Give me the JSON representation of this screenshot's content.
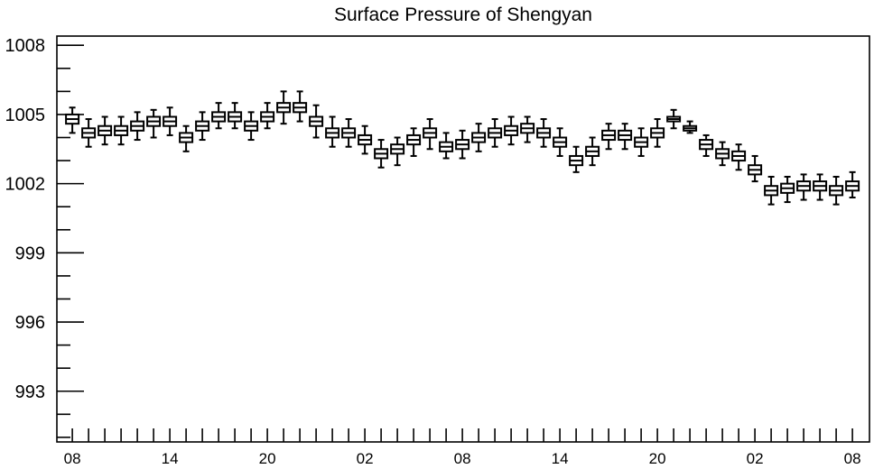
{
  "colors": {
    "foreground": "#000000",
    "background": "#ffffff"
  },
  "chart_data": {
    "type": "box",
    "title": "Surface Pressure of Shengyan",
    "grid": false,
    "ylim": [
      990.8,
      1008.4
    ],
    "y_ticks": [
      1008,
      1005,
      1002,
      999,
      996,
      993
    ],
    "x_tick_labels": [
      "08",
      "14",
      "20",
      "02",
      "08",
      "14",
      "20",
      "02",
      "08"
    ],
    "x": [
      8,
      9,
      10,
      11,
      12,
      13,
      14,
      15,
      16,
      17,
      18,
      19,
      20,
      21,
      22,
      23,
      0,
      1,
      2,
      3,
      4,
      5,
      6,
      7,
      8,
      9,
      10,
      11,
      12,
      13,
      14,
      15,
      16,
      17,
      18,
      19,
      20,
      21,
      22,
      23,
      0,
      1,
      2,
      3,
      4,
      5,
      6,
      7,
      8
    ],
    "median": [
      1004.8,
      1004.2,
      1004.3,
      1004.3,
      1004.5,
      1004.7,
      1004.7,
      1004.0,
      1004.5,
      1004.9,
      1004.9,
      1004.5,
      1004.9,
      1005.3,
      1005.3,
      1004.7,
      1004.2,
      1004.2,
      1003.9,
      1003.3,
      1003.5,
      1003.9,
      1004.2,
      1003.6,
      1003.7,
      1004.0,
      1004.2,
      1004.3,
      1004.4,
      1004.2,
      1003.8,
      1003.0,
      1003.4,
      1004.1,
      1004.1,
      1003.8,
      1004.2,
      1004.8,
      1004.4,
      1003.7,
      1003.3,
      1003.2,
      1002.6,
      1001.7,
      1001.8,
      1001.9,
      1001.9,
      1001.7,
      1001.9
    ],
    "q3": [
      1005.0,
      1004.4,
      1004.5,
      1004.5,
      1004.7,
      1004.9,
      1004.9,
      1004.2,
      1004.7,
      1005.1,
      1005.1,
      1004.7,
      1005.1,
      1005.5,
      1005.5,
      1004.9,
      1004.4,
      1004.4,
      1004.1,
      1003.5,
      1003.7,
      1004.1,
      1004.4,
      1003.8,
      1003.9,
      1004.2,
      1004.4,
      1004.5,
      1004.6,
      1004.4,
      1004.0,
      1003.2,
      1003.6,
      1004.3,
      1004.3,
      1004.0,
      1004.4,
      1004.9,
      1004.5,
      1003.9,
      1003.5,
      1003.4,
      1002.8,
      1001.9,
      1002.0,
      1002.1,
      1002.1,
      1001.9,
      1002.1
    ],
    "q1": [
      1004.6,
      1004.0,
      1004.1,
      1004.1,
      1004.3,
      1004.5,
      1004.5,
      1003.8,
      1004.3,
      1004.7,
      1004.7,
      1004.3,
      1004.7,
      1005.1,
      1005.1,
      1004.5,
      1004.0,
      1004.0,
      1003.7,
      1003.1,
      1003.3,
      1003.7,
      1004.0,
      1003.4,
      1003.5,
      1003.8,
      1004.0,
      1004.1,
      1004.2,
      1004.0,
      1003.6,
      1002.8,
      1003.2,
      1003.9,
      1003.9,
      1003.6,
      1004.0,
      1004.7,
      1004.3,
      1003.5,
      1003.1,
      1003.0,
      1002.4,
      1001.5,
      1001.6,
      1001.7,
      1001.7,
      1001.5,
      1001.7
    ],
    "whisker_high": [
      1005.3,
      1004.8,
      1004.9,
      1004.9,
      1005.1,
      1005.2,
      1005.3,
      1004.5,
      1005.1,
      1005.5,
      1005.5,
      1005.1,
      1005.5,
      1006.0,
      1006.0,
      1005.4,
      1004.9,
      1004.8,
      1004.5,
      1003.9,
      1004.0,
      1004.4,
      1004.8,
      1004.2,
      1004.3,
      1004.6,
      1004.8,
      1004.9,
      1004.9,
      1004.8,
      1004.4,
      1003.6,
      1004.0,
      1004.6,
      1004.6,
      1004.4,
      1004.8,
      1005.2,
      1004.7,
      1004.1,
      1003.8,
      1003.7,
      1003.2,
      1002.3,
      1002.3,
      1002.4,
      1002.4,
      1002.3,
      1002.5
    ],
    "whisker_low": [
      1004.2,
      1003.6,
      1003.7,
      1003.7,
      1003.9,
      1004.0,
      1004.1,
      1003.4,
      1003.9,
      1004.4,
      1004.4,
      1003.9,
      1004.4,
      1004.6,
      1004.7,
      1004.0,
      1003.6,
      1003.6,
      1003.3,
      1002.7,
      1002.8,
      1003.2,
      1003.5,
      1003.1,
      1003.1,
      1003.4,
      1003.6,
      1003.7,
      1003.8,
      1003.6,
      1003.2,
      1002.5,
      1002.8,
      1003.5,
      1003.5,
      1003.2,
      1003.6,
      1004.4,
      1004.2,
      1003.2,
      1002.8,
      1002.6,
      1002.1,
      1001.1,
      1001.2,
      1001.3,
      1001.3,
      1001.1,
      1001.4
    ]
  }
}
